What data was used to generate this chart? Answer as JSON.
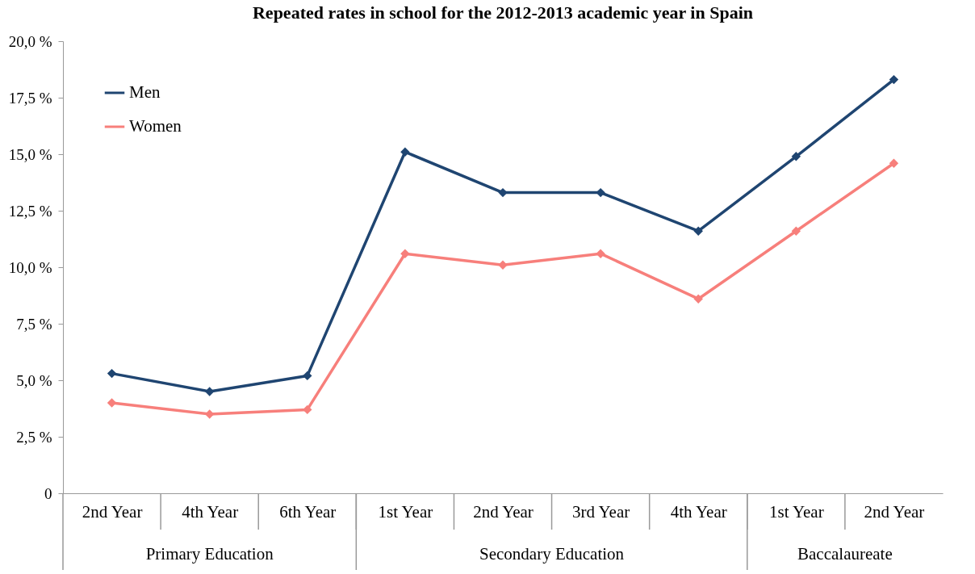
{
  "chart_data": {
    "type": "line",
    "title": "Repeated rates in school for the 2012-2013 academic year in Spain",
    "categories": [
      "2nd Year",
      "4th Year",
      "6th Year",
      "1st Year",
      "2nd Year",
      "3rd Year",
      "4th Year",
      "1st Year",
      "2nd Year"
    ],
    "series": [
      {
        "name": "Men",
        "color": "#1f4571",
        "values": [
          5.3,
          4.5,
          5.2,
          15.1,
          13.3,
          13.3,
          11.6,
          14.9,
          18.3
        ]
      },
      {
        "name": "Women",
        "color": "#f77f7b",
        "values": [
          4.0,
          3.5,
          3.7,
          10.6,
          10.1,
          10.6,
          8.6,
          11.6,
          14.6
        ]
      }
    ],
    "ylim": [
      0,
      20
    ],
    "yticks": [
      {
        "value": 0,
        "label": "0"
      },
      {
        "value": 2.5,
        "label": "2,5  %"
      },
      {
        "value": 5,
        "label": "5,0  %"
      },
      {
        "value": 7.5,
        "label": "7,5  %"
      },
      {
        "value": 10,
        "label": "10,0  %"
      },
      {
        "value": 12.5,
        "label": "12,5 %"
      },
      {
        "value": 15,
        "label": "15,0  %"
      },
      {
        "value": 17.5,
        "label": "17,5  %"
      },
      {
        "value": 20,
        "label": "20,0  %"
      }
    ],
    "annotations": [
      "Primary Education",
      "Secondary Education",
      "Baccalaureate"
    ],
    "grid": false,
    "legend": "top left",
    "marker": "diamond",
    "line_style": "solid"
  }
}
